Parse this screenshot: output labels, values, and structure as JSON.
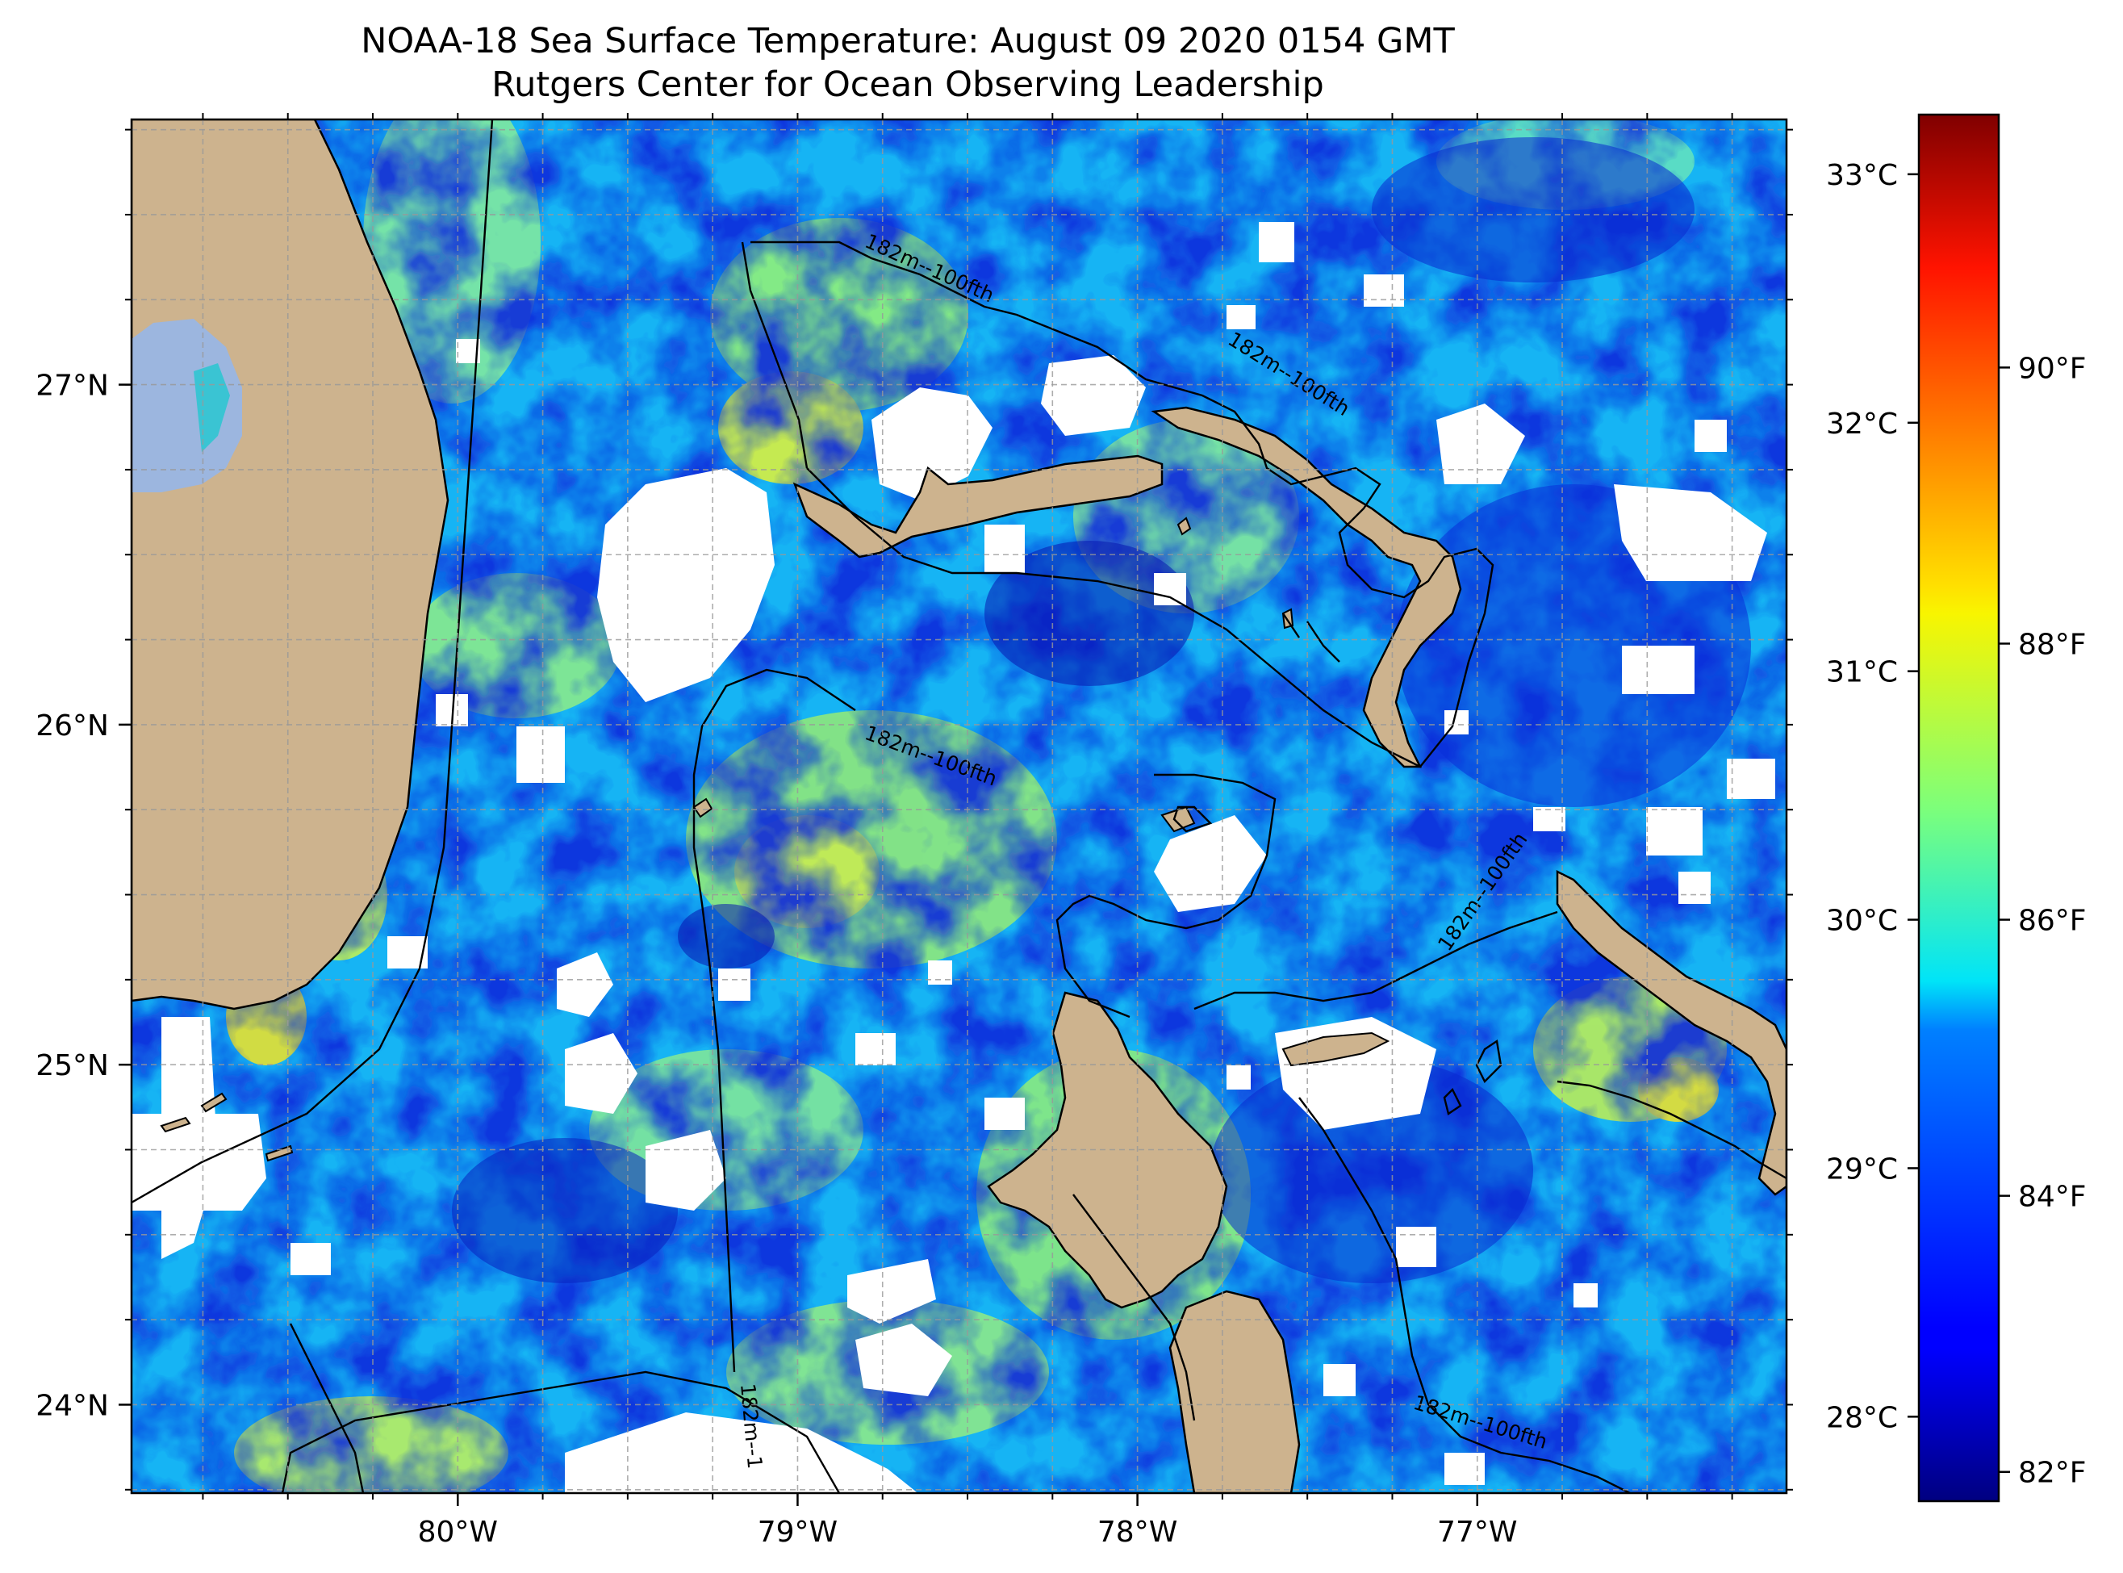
{
  "title": {
    "line1": "NOAA-18 Sea Surface Temperature: August 09 2020 0154 GMT",
    "line2": "Rutgers Center for Ocean Observing Leadership"
  },
  "map": {
    "lon_range": [
      -80.96,
      -76.09
    ],
    "lat_range": [
      23.74,
      27.78
    ],
    "lon_ticks": [
      {
        "value": -80,
        "label": "80°W"
      },
      {
        "value": -79,
        "label": "79°W"
      },
      {
        "value": -78,
        "label": "78°W"
      },
      {
        "value": -77,
        "label": "77°W"
      }
    ],
    "lat_ticks": [
      {
        "value": 24,
        "label": "24°N"
      },
      {
        "value": 25,
        "label": "25°N"
      },
      {
        "value": 26,
        "label": "26°N"
      },
      {
        "value": 27,
        "label": "27°N"
      }
    ],
    "gridlines": "dashed",
    "land_color": "#cdb38e",
    "lake_color": "#9cb6df",
    "cloud_mask_color": "#ffffff",
    "contour_label": "182m--100fth",
    "contour_label_partial": "182m--1"
  },
  "colorbar": {
    "colormap": "jet",
    "celsius_ticks": [
      {
        "value": 28,
        "label": "28°C"
      },
      {
        "value": 29,
        "label": "29°C"
      },
      {
        "value": 30,
        "label": "30°C"
      },
      {
        "value": 31,
        "label": "31°C"
      },
      {
        "value": 32,
        "label": "32°C"
      },
      {
        "value": 33,
        "label": "33°C"
      }
    ],
    "fahrenheit_ticks": [
      {
        "value": 82,
        "label": "82°F"
      },
      {
        "value": 84,
        "label": "84°F"
      },
      {
        "value": 86,
        "label": "86°F"
      },
      {
        "value": 88,
        "label": "88°F"
      },
      {
        "value": 90,
        "label": "90°F"
      }
    ],
    "range_c": [
      27.66,
      33.24
    ]
  }
}
